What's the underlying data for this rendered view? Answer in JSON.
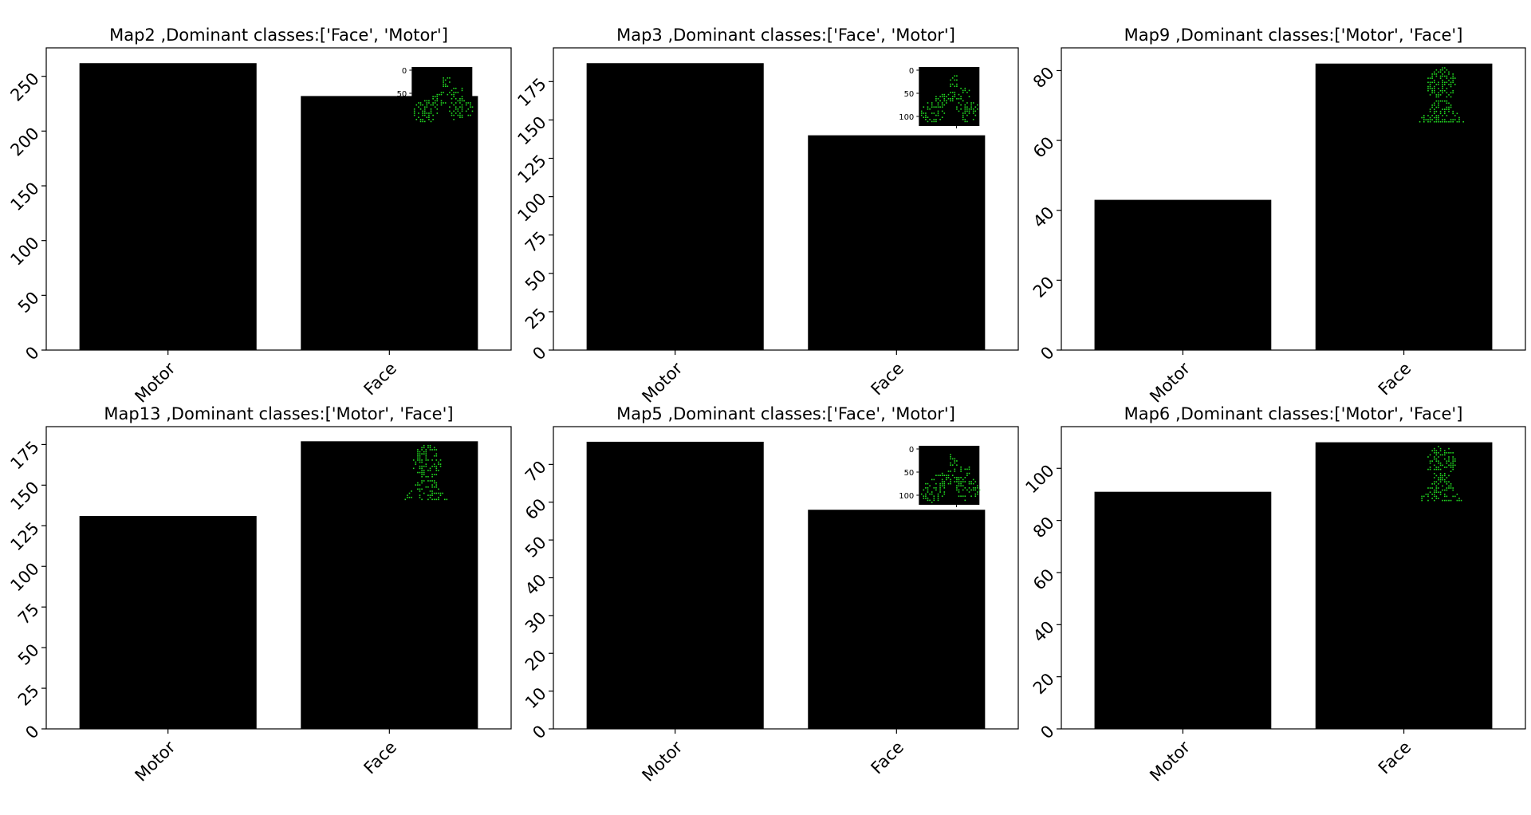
{
  "chart_data": [
    {
      "type": "bar",
      "title": "Map2 ,Dominant classes:['Face', 'Motor']",
      "categories": [
        "Motor",
        "Face"
      ],
      "values": [
        262,
        232
      ],
      "ylim": [
        0,
        276
      ],
      "yticks": [
        0,
        50,
        100,
        150,
        200,
        250
      ],
      "bar_color": "#000000",
      "inset": {
        "kind": "motor",
        "position": "top-right",
        "tick_labels": [
          "0",
          "50"
        ]
      }
    },
    {
      "type": "bar",
      "title": "Map3 ,Dominant classes:['Face', 'Motor']",
      "categories": [
        "Motor",
        "Face"
      ],
      "values": [
        187,
        140
      ],
      "ylim": [
        0,
        197
      ],
      "yticks": [
        0,
        25,
        50,
        75,
        100,
        125,
        150,
        175
      ],
      "bar_color": "#000000",
      "inset": {
        "kind": "motor",
        "position": "top-right",
        "tick_labels": [
          "0",
          "50",
          "100"
        ]
      }
    },
    {
      "type": "bar",
      "title": "Map9 ,Dominant classes:['Motor', 'Face']",
      "categories": [
        "Motor",
        "Face"
      ],
      "values": [
        43,
        82
      ],
      "ylim": [
        0,
        86.5
      ],
      "yticks": [
        0,
        20,
        40,
        60,
        80
      ],
      "bar_color": "#000000",
      "inset": {
        "kind": "face",
        "position": "top-right"
      }
    },
    {
      "type": "bar",
      "title": "Map13 ,Dominant classes:['Motor', 'Face']",
      "categories": [
        "Motor",
        "Face"
      ],
      "values": [
        131,
        177
      ],
      "ylim": [
        0,
        186
      ],
      "yticks": [
        0,
        25,
        50,
        75,
        100,
        125,
        150,
        175
      ],
      "bar_color": "#000000",
      "inset": {
        "kind": "face",
        "position": "top-right"
      }
    },
    {
      "type": "bar",
      "title": "Map5 ,Dominant classes:['Face', 'Motor']",
      "categories": [
        "Motor",
        "Face"
      ],
      "values": [
        76,
        58
      ],
      "ylim": [
        0,
        80
      ],
      "yticks": [
        0,
        10,
        20,
        30,
        40,
        50,
        60,
        70
      ],
      "bar_color": "#000000",
      "inset": {
        "kind": "motor",
        "position": "top-right",
        "tick_labels": [
          "0",
          "50",
          "100"
        ]
      }
    },
    {
      "type": "bar",
      "title": "Map6 ,Dominant classes:['Motor', 'Face']",
      "categories": [
        "Motor",
        "Face"
      ],
      "values": [
        91,
        110
      ],
      "ylim": [
        0,
        116
      ],
      "yticks": [
        0,
        20,
        40,
        60,
        80,
        100
      ],
      "bar_color": "#000000",
      "inset": {
        "kind": "face",
        "position": "top-right"
      }
    }
  ],
  "colors": {
    "bar": "#000000",
    "inset_pixels": "#22dd22",
    "inset_bg": "#000000"
  }
}
